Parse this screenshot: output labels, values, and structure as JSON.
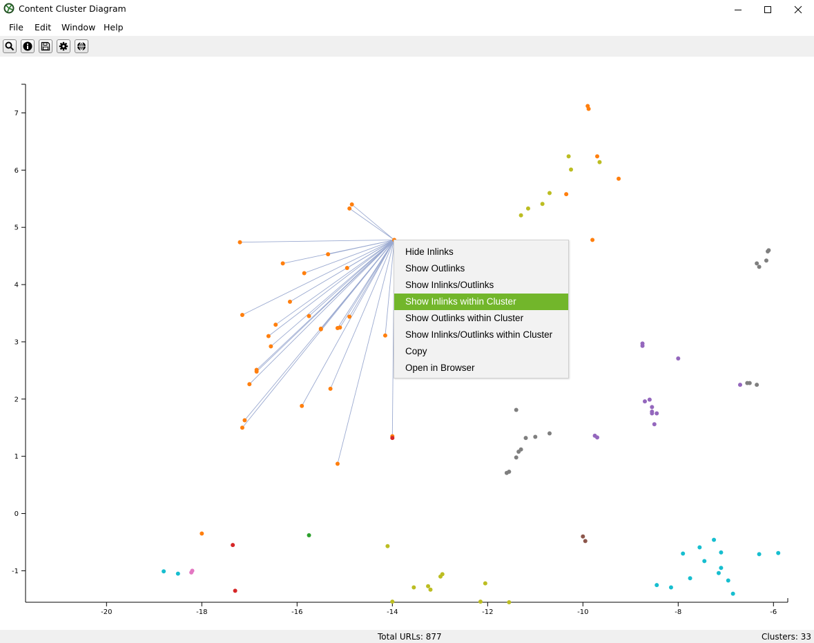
{
  "window": {
    "title": "Content Cluster Diagram"
  },
  "menu": {
    "items": [
      "File",
      "Edit",
      "Window",
      "Help"
    ]
  },
  "toolbar": {
    "buttons": [
      "search-icon",
      "info-icon",
      "save-icon",
      "gear-icon",
      "globe-icon"
    ]
  },
  "context_menu": {
    "items": [
      "Hide Inlinks",
      "Show Outlinks",
      "Show Inlinks/Outlinks",
      "Show Inlinks within Cluster",
      "Show Outlinks within Cluster",
      "Show Inlinks/Outlinks within Cluster",
      "Copy",
      "Open in Browser"
    ],
    "active_index": 3,
    "active_color": "#72b62b"
  },
  "status": {
    "total_urls": "Total URLs: 877",
    "clusters": "Clusters: 33"
  },
  "chart_data": {
    "type": "scatter",
    "xlim": [
      -21.7,
      -5.7
    ],
    "ylim": [
      -1.55,
      7.5
    ],
    "x_ticks": [
      -20,
      -18,
      -16,
      -14,
      -12,
      -10,
      -8,
      -6
    ],
    "y_ticks": [
      -1,
      0,
      1,
      2,
      3,
      4,
      5,
      6,
      7
    ],
    "grid": false,
    "hub": [
      -13.96,
      4.78
    ],
    "series": [
      {
        "color": "#ff7f0e",
        "points": [
          [
            -14.85,
            5.4
          ],
          [
            -14.9,
            5.33
          ],
          [
            -17.2,
            4.74
          ],
          [
            -16.3,
            4.37
          ],
          [
            -15.35,
            4.53
          ],
          [
            -15.85,
            4.2
          ],
          [
            -14.95,
            4.29
          ],
          [
            -16.15,
            3.7
          ],
          [
            -17.15,
            3.47
          ],
          [
            -16.45,
            3.3
          ],
          [
            -15.75,
            3.45
          ],
          [
            -16.6,
            3.1
          ],
          [
            -16.55,
            2.92
          ],
          [
            -15.5,
            3.22
          ],
          [
            -15.5,
            3.23
          ],
          [
            -15.15,
            3.24
          ],
          [
            -15.1,
            3.25
          ],
          [
            -14.9,
            3.44
          ],
          [
            -14.15,
            3.11
          ],
          [
            -16.85,
            2.48
          ],
          [
            -16.85,
            2.51
          ],
          [
            -17.0,
            2.26
          ],
          [
            -15.3,
            2.18
          ],
          [
            -15.9,
            1.88
          ],
          [
            -17.1,
            1.63
          ],
          [
            -17.15,
            1.5
          ],
          [
            -14.0,
            1.35
          ],
          [
            -15.15,
            0.87
          ],
          [
            -9.9,
            7.12
          ],
          [
            -9.88,
            7.07
          ],
          [
            -9.7,
            6.24
          ],
          [
            -9.25,
            5.85
          ],
          [
            -10.35,
            5.58
          ],
          [
            -9.8,
            4.78
          ],
          [
            -18.0,
            -0.35
          ],
          [
            -13.96,
            4.78
          ]
        ],
        "linked": 28
      },
      {
        "color": "#bcbd22",
        "points": [
          [
            -10.3,
            6.24
          ],
          [
            -10.25,
            6.01
          ],
          [
            -9.65,
            6.14
          ],
          [
            -10.7,
            5.6
          ],
          [
            -10.85,
            5.41
          ],
          [
            -11.15,
            5.33
          ],
          [
            -11.3,
            5.21
          ],
          [
            -14.1,
            -0.57
          ],
          [
            -13.55,
            -1.29
          ],
          [
            -13.25,
            -1.27
          ],
          [
            -13.2,
            -1.33
          ],
          [
            -12.95,
            -1.06
          ],
          [
            -12.99,
            -1.1
          ],
          [
            -12.05,
            -1.22
          ],
          [
            -12.15,
            -1.54
          ],
          [
            -14.0,
            -1.54
          ],
          [
            -11.55,
            -1.55
          ]
        ]
      },
      {
        "color": "#7f7f7f",
        "points": [
          [
            -6.1,
            4.6
          ],
          [
            -6.12,
            4.58
          ],
          [
            -6.35,
            4.37
          ],
          [
            -6.3,
            4.31
          ],
          [
            -6.15,
            4.42
          ],
          [
            -6.5,
            2.28
          ],
          [
            -6.55,
            2.28
          ],
          [
            -6.35,
            2.25
          ],
          [
            -11.4,
            1.81
          ],
          [
            -10.7,
            1.4
          ],
          [
            -11.0,
            1.34
          ],
          [
            -11.2,
            1.32
          ],
          [
            -11.3,
            1.12
          ],
          [
            -11.35,
            1.08
          ],
          [
            -11.4,
            0.98
          ],
          [
            -11.55,
            0.73
          ],
          [
            -11.6,
            0.71
          ]
        ]
      },
      {
        "color": "#9467bd",
        "points": [
          [
            -8.75,
            2.97
          ],
          [
            -8.75,
            2.93
          ],
          [
            -8.0,
            2.71
          ],
          [
            -6.7,
            2.25
          ],
          [
            -8.6,
            1.99
          ],
          [
            -8.7,
            1.96
          ],
          [
            -8.55,
            1.86
          ],
          [
            -8.55,
            1.78
          ],
          [
            -8.45,
            1.75
          ],
          [
            -8.55,
            1.75
          ],
          [
            -8.5,
            1.56
          ],
          [
            -9.75,
            1.36
          ],
          [
            -9.7,
            1.33
          ]
        ]
      },
      {
        "color": "#17becf",
        "points": [
          [
            -18.8,
            -1.01
          ],
          [
            -18.5,
            -1.05
          ],
          [
            -7.25,
            -0.46
          ],
          [
            -7.1,
            -0.68
          ],
          [
            -7.55,
            -0.59
          ],
          [
            -7.9,
            -0.7
          ],
          [
            -6.3,
            -0.71
          ],
          [
            -5.9,
            -0.69
          ],
          [
            -7.45,
            -0.83
          ],
          [
            -7.1,
            -0.95
          ],
          [
            -7.15,
            -1.04
          ],
          [
            -7.75,
            -1.13
          ],
          [
            -6.95,
            -1.17
          ],
          [
            -8.45,
            -1.25
          ],
          [
            -8.15,
            -1.29
          ],
          [
            -6.85,
            -1.4
          ]
        ]
      },
      {
        "color": "#d62728",
        "points": [
          [
            -17.35,
            -0.55
          ],
          [
            -17.3,
            -1.35
          ],
          [
            -14.0,
            1.32
          ]
        ]
      },
      {
        "color": "#e377c2",
        "points": [
          [
            -18.2,
            -1.0
          ],
          [
            -18.22,
            -1.03
          ]
        ]
      },
      {
        "color": "#2ca02c",
        "points": [
          [
            -15.75,
            -0.38
          ]
        ]
      },
      {
        "color": "#8c564b",
        "points": [
          [
            -10.0,
            -0.4
          ],
          [
            -9.95,
            -0.48
          ]
        ]
      }
    ]
  }
}
